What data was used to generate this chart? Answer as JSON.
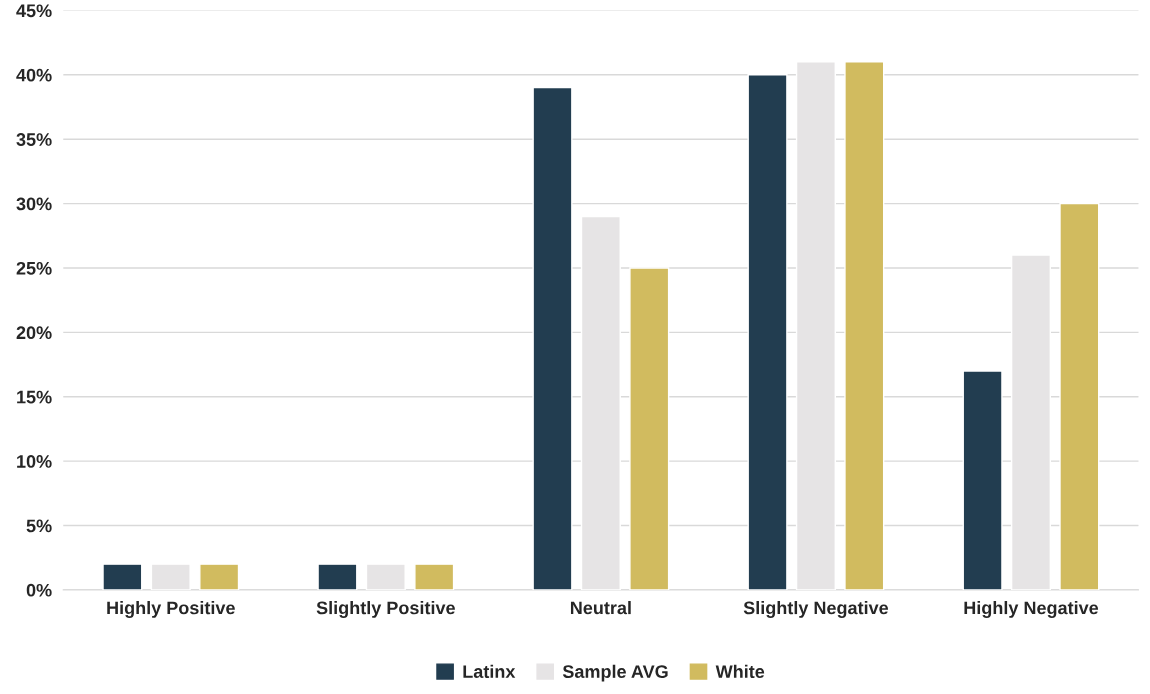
{
  "chart_data": {
    "type": "bar",
    "categories": [
      "Highly Positive",
      "Slightly Positive",
      "Neutral",
      "Slightly Negative",
      "Highly Negative"
    ],
    "series": [
      {
        "name": "Latinx",
        "color": "#223d50",
        "values": [
          2,
          2,
          39,
          40,
          17
        ]
      },
      {
        "name": "Sample AVG",
        "color": "#e6e4e5",
        "values": [
          2,
          2,
          29,
          41,
          26
        ]
      },
      {
        "name": "White",
        "color": "#d1bb5f",
        "values": [
          2,
          2,
          25,
          41,
          30
        ]
      }
    ],
    "ylim": [
      0,
      45
    ],
    "yticks": [
      {
        "value": 0,
        "label": "0%"
      },
      {
        "value": 5,
        "label": "5%"
      },
      {
        "value": 10,
        "label": "10%"
      },
      {
        "value": 15,
        "label": "15%"
      },
      {
        "value": 20,
        "label": "20%"
      },
      {
        "value": 25,
        "label": "25%"
      },
      {
        "value": 30,
        "label": "30%"
      },
      {
        "value": 35,
        "label": "35%"
      },
      {
        "value": 40,
        "label": "40%"
      },
      {
        "value": 45,
        "label": "45%"
      }
    ],
    "grid": "y",
    "legend": "bottom"
  }
}
